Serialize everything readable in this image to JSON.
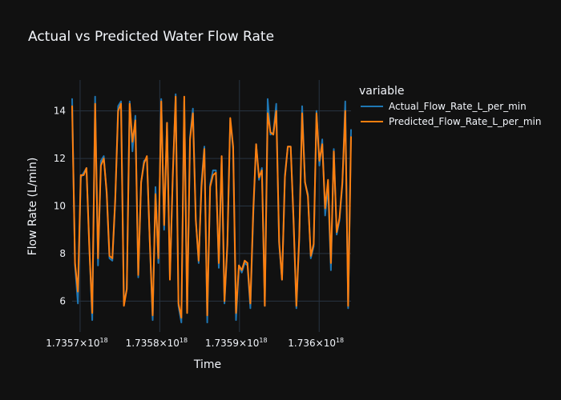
{
  "chart_data": {
    "type": "line",
    "title": "Actual vs Predicted Water Flow Rate",
    "xlabel": "Time",
    "ylabel": "Flow Rate (L/min)",
    "xlim": [
      1.73569e+18,
      1.73604e+18
    ],
    "ylim": [
      4.7,
      15.3
    ],
    "x_ticks": [
      {
        "value": 1.7357e+18,
        "label": "1.7357×10",
        "exp": "18"
      },
      {
        "value": 1.7358e+18,
        "label": "1.7358×10",
        "exp": "18"
      },
      {
        "value": 1.7359e+18,
        "label": "1.7359×10",
        "exp": "18"
      },
      {
        "value": 1.736e+18,
        "label": "1.736×10",
        "exp": "18"
      }
    ],
    "y_ticks": [
      6,
      8,
      10,
      12,
      14
    ],
    "grid": true,
    "legend": {
      "title": "variable",
      "position": "top-right"
    },
    "x_start": 1.73569e+18,
    "x_end": 1.73604e+18,
    "series": [
      {
        "name": "Actual_Flow_Rate_L_per_min",
        "color": "#1f77b4",
        "values": [
          14.5,
          7.5,
          5.9,
          11.2,
          11.4,
          11.6,
          8.3,
          5.2,
          14.6,
          7.5,
          11.9,
          12.1,
          10.5,
          7.8,
          7.7,
          10.2,
          14.2,
          14.4,
          5.9,
          6.5,
          14.4,
          12.3,
          13.8,
          7.0,
          11.0,
          11.9,
          12.0,
          8.5,
          5.2,
          10.8,
          7.6,
          14.5,
          9.0,
          13.5,
          7.0,
          11.2,
          14.7,
          5.8,
          5.1,
          14.4,
          5.5,
          12.9,
          14.1,
          9.5,
          7.6,
          11.0,
          12.5,
          5.1,
          10.9,
          11.5,
          11.5,
          7.4,
          12.0,
          5.9,
          8.3,
          13.6,
          12.4,
          5.2,
          7.5,
          7.2,
          7.6,
          7.5,
          5.7,
          9.6,
          12.6,
          11.1,
          11.6,
          5.8,
          14.5,
          13.0,
          13.1,
          14.3,
          8.4,
          6.9,
          11.3,
          12.5,
          12.5,
          9.4,
          5.7,
          8.6,
          14.2,
          11.0,
          10.5,
          7.8,
          8.3,
          14.0,
          11.7,
          12.8,
          9.6,
          10.8,
          7.3,
          12.4,
          8.8,
          9.4,
          10.9,
          14.4,
          5.7,
          13.2
        ]
      },
      {
        "name": "Predicted_Flow_Rate_L_per_min",
        "color": "#ff7f0e",
        "values": [
          14.2,
          7.6,
          6.4,
          11.3,
          11.3,
          11.6,
          8.2,
          5.5,
          14.3,
          7.8,
          11.7,
          12.0,
          10.6,
          7.9,
          7.8,
          10.3,
          14.0,
          14.3,
          5.8,
          6.5,
          14.3,
          12.7,
          13.6,
          7.1,
          11.0,
          11.8,
          12.1,
          8.5,
          5.4,
          10.5,
          7.8,
          14.4,
          9.2,
          13.5,
          6.9,
          11.3,
          14.6,
          5.9,
          5.3,
          14.6,
          5.5,
          12.8,
          13.9,
          9.4,
          7.7,
          10.8,
          12.4,
          5.4,
          10.8,
          11.3,
          11.4,
          7.6,
          12.1,
          6.0,
          8.4,
          13.7,
          12.5,
          5.5,
          7.5,
          7.3,
          7.7,
          7.6,
          5.9,
          9.8,
          12.6,
          11.2,
          11.5,
          5.8,
          13.9,
          13.1,
          13.0,
          14.0,
          8.5,
          6.9,
          11.2,
          12.5,
          12.5,
          9.5,
          5.8,
          8.7,
          13.9,
          11.0,
          10.4,
          7.9,
          8.4,
          13.9,
          11.9,
          12.6,
          9.9,
          11.1,
          7.6,
          12.3,
          8.9,
          9.5,
          11.0,
          14.0,
          5.8,
          12.9
        ]
      }
    ]
  }
}
